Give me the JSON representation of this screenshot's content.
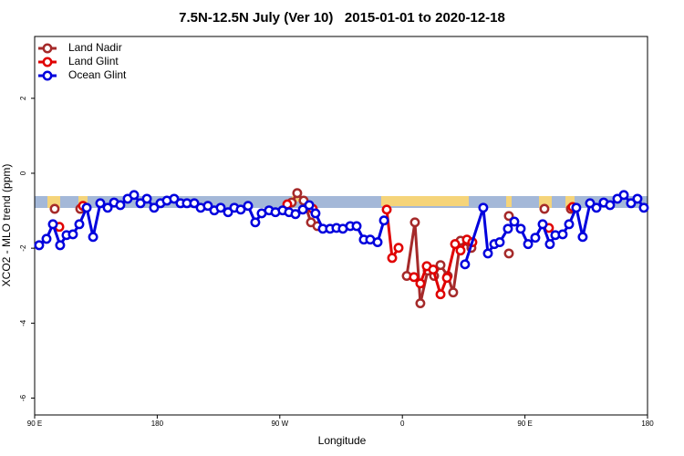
{
  "chart_data": {
    "type": "line",
    "title": "7.5N-12.5N July (Ver 10)   2015-01-01 to 2020-12-18",
    "x_label": "Longitude",
    "y_label": "XCO2 - MLO trend (ppm)",
    "xlim": [
      90,
      540
    ],
    "ylim": [
      -6.45,
      3.65
    ],
    "xticks": [
      {
        "value": 90,
        "label": "90 E"
      },
      180,
      {
        "value": 270,
        "label": "90 W"
      },
      {
        "value": 360,
        "label": "0"
      },
      {
        "value": 450,
        "label": "90 E"
      },
      {
        "value": 540,
        "label": "180"
      }
    ],
    "yticks": [
      2,
      0,
      -2,
      -4,
      -6
    ],
    "legend": "top-left",
    "series": [
      {
        "name": "Land Nadir",
        "color": "#a52a2a",
        "x": [
          104.7,
          null,
          123.5,
          null,
          278.8,
          282.8,
          287.5,
          292.9,
          297.6,
          null,
          363.2,
          369.2,
          373.2,
          378.6,
          383.3,
          388.0,
          393.3,
          397.3,
          402.7,
          410.7,
          null,
          438.2,
          null,
          438.2,
          null,
          464.3,
          null,
          483.7
        ],
        "values": [
          -0.95,
          null,
          -0.95,
          null,
          -0.78,
          -0.53,
          -0.73,
          -1.31,
          -1.41,
          null,
          -2.74,
          -1.31,
          -3.47,
          -2.6,
          -2.74,
          -2.45,
          -2.74,
          -3.18,
          -1.8,
          -1.99,
          null,
          -1.14,
          null,
          -2.14,
          null,
          -0.95,
          null,
          -0.95
        ]
      },
      {
        "name": "Land Glint",
        "color": "#e00000",
        "x": [
          108.1,
          null,
          125.5,
          null,
          275.5,
          null,
          294.2,
          null,
          348.5,
          352.5,
          357.2,
          null,
          368.5,
          373.2,
          377.9,
          382.6,
          388.0,
          392.7,
          398.7,
          402.7,
          407.4,
          411.4,
          null,
          467.6,
          null,
          485.0
        ],
        "values": [
          -1.43,
          null,
          -0.87,
          null,
          -0.83,
          null,
          -0.95,
          null,
          -0.97,
          -2.26,
          -1.99,
          null,
          -2.77,
          -2.94,
          -2.48,
          -2.57,
          -3.23,
          -2.79,
          -1.89,
          -2.06,
          -1.77,
          -1.84,
          null,
          -1.46,
          null,
          -0.9
        ]
      },
      {
        "name": "Ocean Glint",
        "color": "#0000dd",
        "x": [
          93.3,
          98.7,
          103.4,
          108.7,
          113.4,
          118.1,
          122.8,
          128.2,
          132.9,
          138.2,
          143.6,
          148.3,
          152.9,
          158.3,
          163.0,
          167.7,
          172.4,
          177.7,
          182.4,
          187.1,
          192.4,
          197.1,
          201.8,
          207.2,
          211.9,
          217.2,
          221.9,
          226.6,
          232.0,
          236.6,
          241.3,
          246.7,
          252.0,
          256.7,
          262.1,
          266.8,
          272.1,
          276.8,
          281.5,
          286.9,
          291.6,
          296.2,
          301.6,
          306.9,
          311.6,
          316.3,
          321.7,
          326.4,
          331.7,
          336.4,
          341.8,
          346.5,
          null,
          406.0,
          419.4,
          422.8,
          427.5,
          431.5,
          437.5,
          442.2,
          446.9,
          452.3,
          457.6,
          463.0,
          468.3,
          472.3,
          477.7,
          482.4,
          487.7,
          492.4,
          497.8,
          502.5,
          507.8,
          512.5,
          517.9,
          522.6,
          527.9,
          532.6,
          537.3
        ],
        "values": [
          -1.92,
          -1.75,
          -1.36,
          -1.92,
          -1.65,
          -1.63,
          -1.36,
          -0.92,
          -1.7,
          -0.8,
          -0.92,
          -0.78,
          -0.85,
          -0.68,
          -0.58,
          -0.8,
          -0.68,
          -0.92,
          -0.8,
          -0.73,
          -0.68,
          -0.8,
          -0.8,
          -0.8,
          -0.92,
          -0.87,
          -0.99,
          -0.92,
          -1.04,
          -0.92,
          -0.97,
          -0.87,
          -1.31,
          -1.07,
          -0.99,
          -1.04,
          -0.99,
          -1.04,
          -1.09,
          -0.97,
          -0.85,
          -1.07,
          -1.48,
          -1.48,
          -1.46,
          -1.48,
          -1.41,
          -1.41,
          -1.77,
          -1.77,
          -1.84,
          -1.26,
          null,
          -2.43,
          -0.92,
          -2.14,
          -1.89,
          -1.84,
          -1.48,
          -1.29,
          -1.48,
          -1.89,
          -1.72,
          -1.36,
          -1.89,
          -1.65,
          -1.63,
          -1.36,
          -0.92,
          -1.7,
          -0.8,
          -0.92,
          -0.78,
          -0.85,
          -0.68,
          -0.58,
          -0.8,
          -0.68,
          -0.92
        ]
      }
    ]
  }
}
